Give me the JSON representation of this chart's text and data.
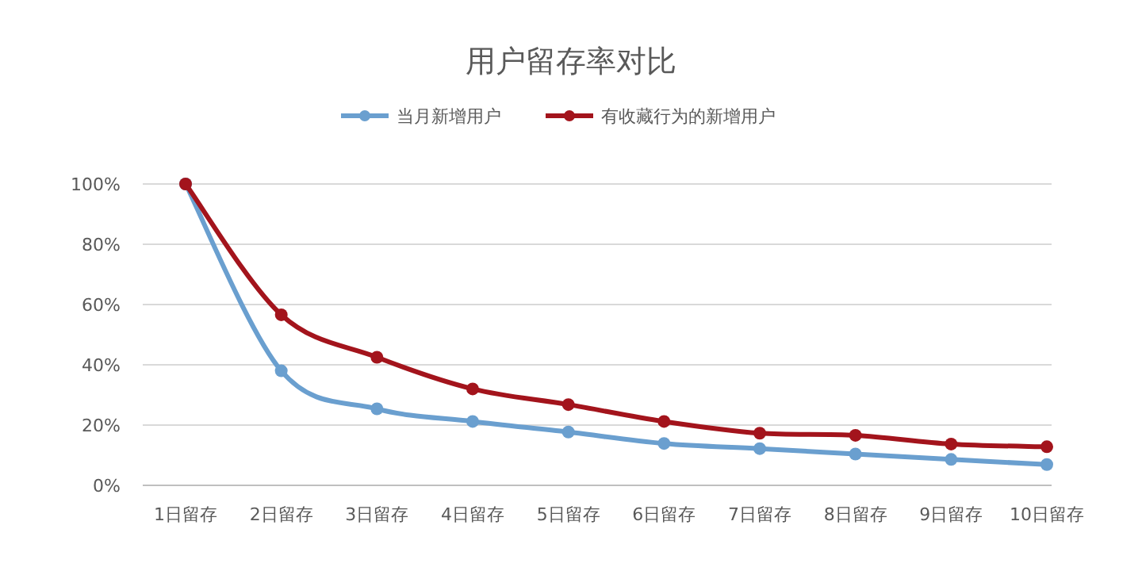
{
  "chart_data": {
    "type": "line",
    "title": "用户留存率对比",
    "categories": [
      "1日留存",
      "2日留存",
      "3日留存",
      "4日留存",
      "5日留存",
      "6日留存",
      "7日留存",
      "8日留存",
      "9日留存",
      "10日留存"
    ],
    "series": [
      {
        "name": "当月新增用户",
        "color": "#6a9fcf",
        "values": [
          100,
          38,
          25.4,
          21.2,
          17.7,
          13.9,
          12.2,
          10.4,
          8.6,
          6.9
        ]
      },
      {
        "name": "有收藏行为的新增用户",
        "color": "#a3141c",
        "values": [
          100,
          56.6,
          42.5,
          32,
          26.8,
          21.2,
          17.3,
          16.6,
          13.7,
          12.8
        ]
      }
    ],
    "ylim": [
      0,
      100
    ],
    "yticks": [
      {
        "value": 0,
        "label": "0%"
      },
      {
        "value": 20,
        "label": "20%"
      },
      {
        "value": 40,
        "label": "40%"
      },
      {
        "value": 60,
        "label": "60%"
      },
      {
        "value": 80,
        "label": "80%"
      },
      {
        "value": 100,
        "label": "100%"
      }
    ],
    "grid": "y",
    "legend": "top",
    "marker": "circle",
    "line_style": "solid"
  }
}
